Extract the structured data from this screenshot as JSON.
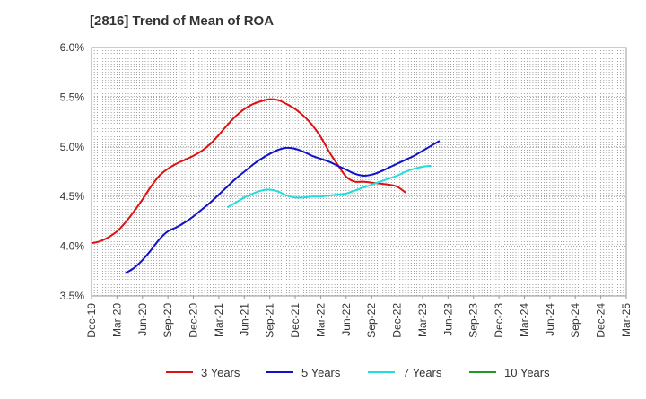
{
  "chart_data": {
    "type": "line",
    "title": "[2816]  Trend of Mean of ROA",
    "xlabel": "",
    "ylabel": "",
    "ylim": [
      3.5,
      6.0
    ],
    "y_ticks": [
      3.5,
      4.0,
      4.5,
      5.0,
      5.5,
      6.0
    ],
    "y_tick_labels": [
      "3.5%",
      "4.0%",
      "4.5%",
      "5.0%",
      "5.5%",
      "6.0%"
    ],
    "x_tick_labels": [
      "Dec-19",
      "Mar-20",
      "Jun-20",
      "Sep-20",
      "Dec-20",
      "Mar-21",
      "Jun-21",
      "Sep-21",
      "Dec-21",
      "Mar-22",
      "Jun-22",
      "Sep-22",
      "Dec-22",
      "Mar-23",
      "Jun-23",
      "Sep-23",
      "Dec-23",
      "Mar-24",
      "Jun-24",
      "Sep-24",
      "Dec-24",
      "Mar-25"
    ],
    "grid": true,
    "legend_position": "bottom",
    "series": [
      {
        "name": "3 Years",
        "color": "#dd1111",
        "start_index": 0,
        "values": [
          4.03,
          4.05,
          4.09,
          4.15,
          4.24,
          4.35,
          4.47,
          4.6,
          4.71,
          4.78,
          4.83,
          4.87,
          4.91,
          4.96,
          5.03,
          5.12,
          5.22,
          5.31,
          5.38,
          5.43,
          5.46,
          5.48,
          5.47,
          5.43,
          5.38,
          5.31,
          5.22,
          5.1,
          4.95,
          4.82,
          4.7,
          4.65,
          4.65,
          4.64,
          4.63,
          4.62,
          4.6,
          4.54
        ]
      },
      {
        "name": "5 Years",
        "color": "#1111cc",
        "start_index": 4,
        "values": [
          3.73,
          3.78,
          3.86,
          3.96,
          4.07,
          4.15,
          4.19,
          4.24,
          4.3,
          4.37,
          4.44,
          4.52,
          4.6,
          4.68,
          4.75,
          4.82,
          4.88,
          4.93,
          4.97,
          4.99,
          4.98,
          4.95,
          4.91,
          4.88,
          4.85,
          4.81,
          4.77,
          4.73,
          4.71,
          4.72,
          4.75,
          4.79,
          4.83,
          4.87,
          4.91,
          4.96,
          5.01,
          5.06
        ]
      },
      {
        "name": "7 Years",
        "color": "#22dddd",
        "start_index": 16,
        "values": [
          4.39,
          4.44,
          4.49,
          4.53,
          4.56,
          4.57,
          4.55,
          4.51,
          4.49,
          4.49,
          4.5,
          4.5,
          4.51,
          4.52,
          4.53,
          4.56,
          4.59,
          4.62,
          4.65,
          4.68,
          4.71,
          4.75,
          4.78,
          4.8,
          4.81
        ]
      },
      {
        "name": "10 Years",
        "color": "#229922",
        "start_index": 0,
        "values": []
      }
    ]
  }
}
